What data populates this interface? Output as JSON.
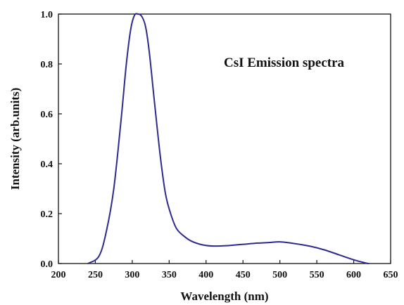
{
  "chart_data": {
    "type": "line",
    "title": "",
    "annotation": "CsI Emission spectra",
    "xlabel": "Wavelength (nm)",
    "ylabel": "Intensity (arb.units)",
    "xlim": [
      200,
      650
    ],
    "ylim": [
      0.0,
      1.0
    ],
    "x_ticks": [
      200,
      250,
      300,
      350,
      400,
      450,
      500,
      550,
      600,
      650
    ],
    "x_tick_labels": [
      "200",
      "250",
      "300",
      "350",
      "400",
      "450",
      "500",
      "550",
      "600",
      "650"
    ],
    "y_ticks": [
      0.0,
      0.2,
      0.4,
      0.6,
      0.8,
      1.0
    ],
    "y_tick_labels": [
      "0.0",
      "0.2",
      "0.4",
      "0.6",
      "0.8",
      "1.0"
    ],
    "grid": false,
    "legend": "none",
    "series": [
      {
        "color": "#2e2a8e",
        "x": [
          240,
          255,
          265,
          275,
          285,
          292,
          298,
          303,
          308,
          313,
          318,
          323,
          330,
          338,
          345,
          352,
          360,
          370,
          380,
          395,
          410,
          430,
          450,
          470,
          485,
          500,
          520,
          540,
          560,
          580,
          600,
          615,
          620
        ],
        "y": [
          0.0,
          0.03,
          0.13,
          0.3,
          0.58,
          0.8,
          0.94,
          0.995,
          1.0,
          0.99,
          0.95,
          0.85,
          0.65,
          0.43,
          0.28,
          0.2,
          0.14,
          0.11,
          0.09,
          0.075,
          0.07,
          0.072,
          0.077,
          0.082,
          0.084,
          0.087,
          0.08,
          0.07,
          0.055,
          0.035,
          0.015,
          0.003,
          0.0
        ]
      }
    ]
  }
}
